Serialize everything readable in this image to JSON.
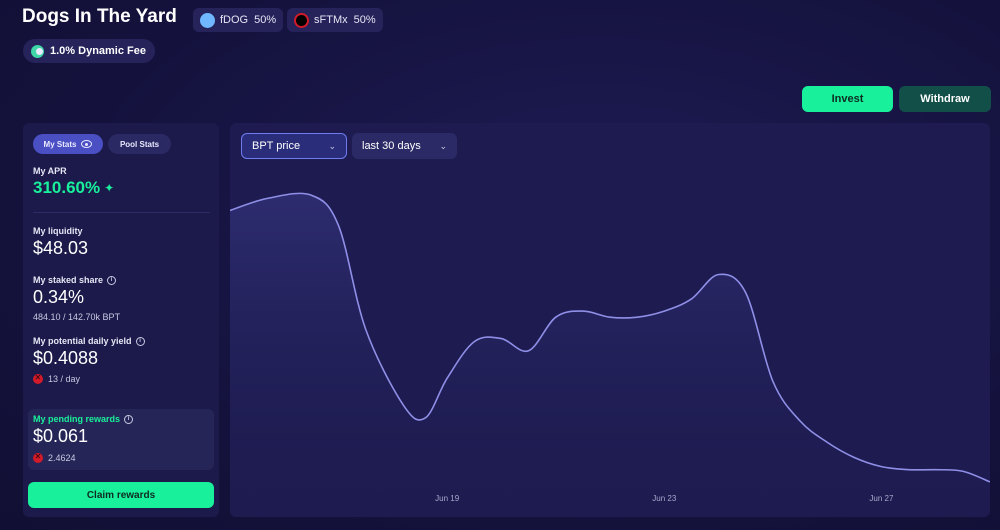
{
  "header": {
    "title": "Dogs In The Yard",
    "tokens": [
      {
        "symbol": "fDOG",
        "weight": "50%",
        "color": "#6fb8ff"
      },
      {
        "symbol": "sFTMx",
        "weight": "50%",
        "color": "#d11a2a"
      }
    ],
    "fee_label": "1.0% Dynamic Fee"
  },
  "actions": {
    "invest": "Invest",
    "withdraw": "Withdraw"
  },
  "stats": {
    "tabs": {
      "my": "My Stats",
      "pool": "Pool Stats"
    },
    "apr_label": "My APR",
    "apr_value": "310.60%",
    "liquidity_label": "My liquidity",
    "liquidity_value": "$48.03",
    "staked_label": "My staked share",
    "staked_value": "0.34%",
    "staked_sub": "484.10 / 142.70k BPT",
    "yield_label": "My potential daily yield",
    "yield_value": "$0.4088",
    "yield_sub": "13 / day",
    "pending_label": "My pending rewards",
    "pending_value": "$0.061",
    "pending_sub": "2.4624",
    "claim": "Claim rewards"
  },
  "chart_controls": {
    "metric": "BPT price",
    "range": "last 30 days"
  },
  "colors": {
    "accent": "#19f09b",
    "line": "#8f8fe8",
    "panel": "#1d1b4f"
  },
  "chart_data": {
    "type": "area",
    "title": "",
    "xlabel": "",
    "ylabel": "",
    "x_ticks": [
      "Jun 19",
      "Jun 23",
      "Jun 27"
    ],
    "x_tick_days": [
      4,
      8,
      12
    ],
    "x": [
      0,
      0.7,
      1.5,
      2,
      2.5,
      3.2,
      3.6,
      4,
      4.5,
      5,
      5.5,
      6,
      6.5,
      7,
      7.5,
      8,
      8.5,
      9,
      9.5,
      10,
      10.5,
      11,
      11.5,
      12,
      12.5,
      13,
      13.5,
      14
    ],
    "values": [
      0.91,
      0.95,
      0.96,
      0.86,
      0.52,
      0.27,
      0.23,
      0.36,
      0.48,
      0.49,
      0.45,
      0.56,
      0.58,
      0.56,
      0.56,
      0.58,
      0.62,
      0.7,
      0.64,
      0.35,
      0.22,
      0.15,
      0.1,
      0.07,
      0.06,
      0.06,
      0.055,
      0.02
    ],
    "ylim": [
      0,
      1
    ]
  }
}
